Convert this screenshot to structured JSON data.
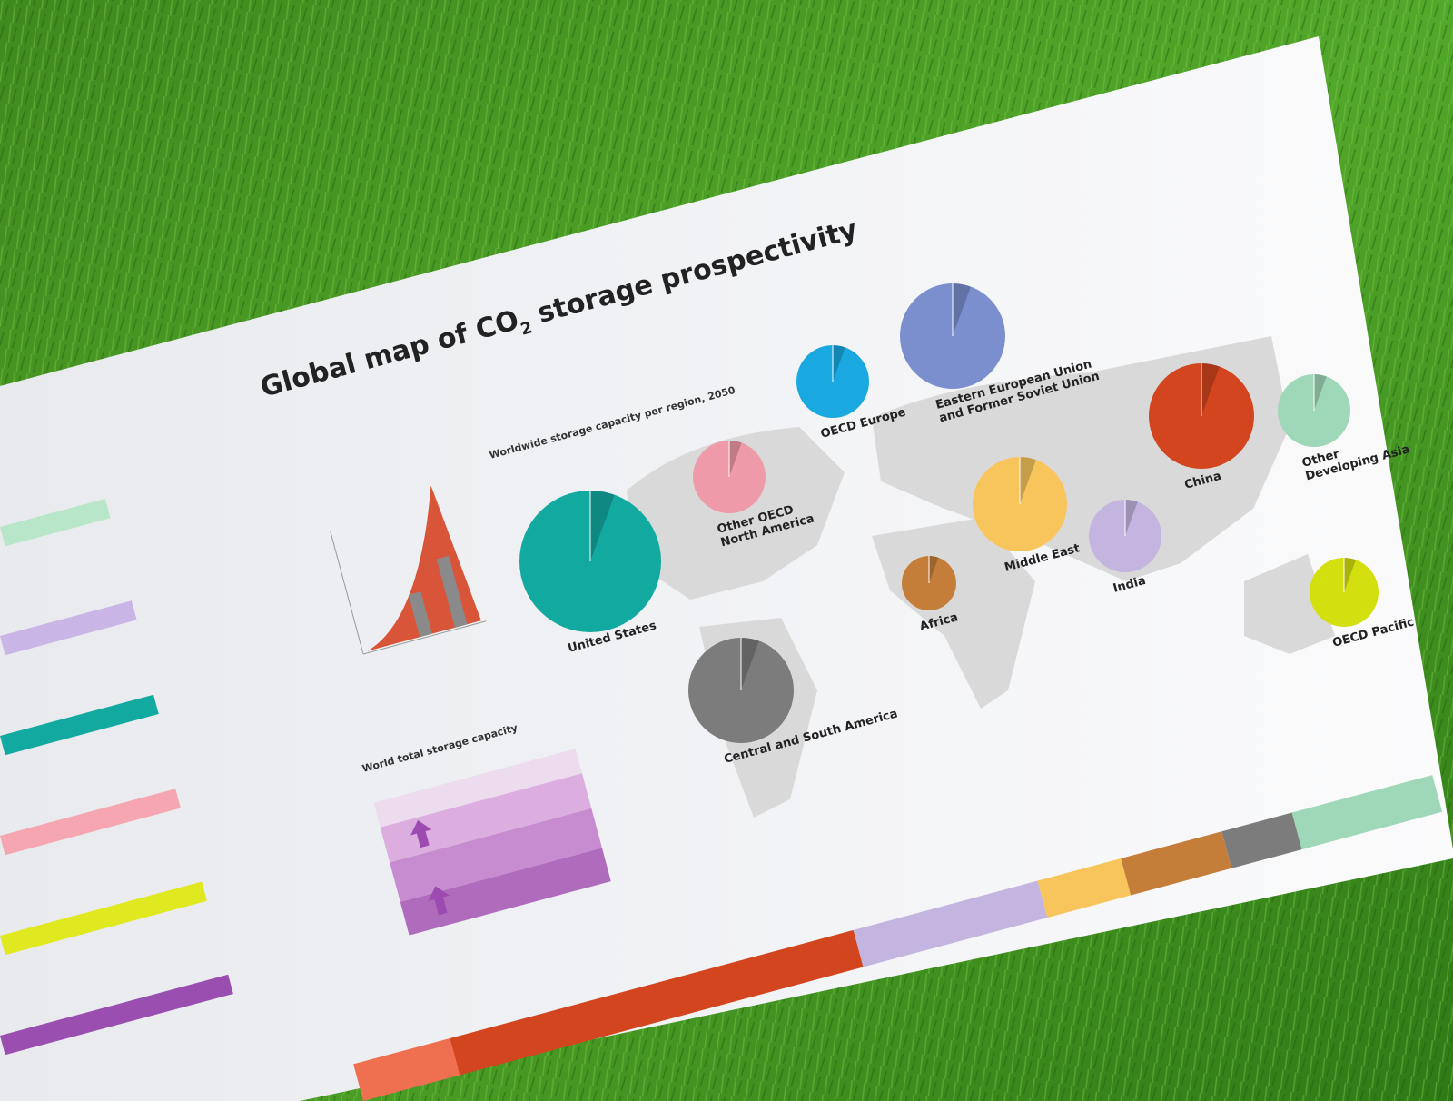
{
  "poster": {
    "title": {
      "text": "Global map of CO",
      "subscript": "2",
      "rest": " storage prospectivity"
    },
    "captions": [
      "Worldwide storage capacity per region, 2050",
      "World total storage capacity"
    ],
    "regions": [
      {
        "name": [
          "United States"
        ],
        "color": "#12aaa0"
      },
      {
        "name": [
          "Other OECD",
          "North America"
        ],
        "color": "#ef9aa8"
      },
      {
        "name": [
          "OECD Europe"
        ],
        "color": "#1aa8e0"
      },
      {
        "name": [
          "Eastern European Union",
          "and Former Soviet Union"
        ],
        "color": "#7b8fce"
      },
      {
        "name": [
          "Middle East"
        ],
        "color": "#f8c55c"
      },
      {
        "name": [
          "China"
        ],
        "color": "#d2451e"
      },
      {
        "name": [
          "Other",
          "Developing Asia"
        ],
        "color": "#9fd8b8"
      },
      {
        "name": [
          "India"
        ],
        "color": "#c3b5e0"
      },
      {
        "name": [
          "Africa"
        ],
        "color": "#c47e3a"
      },
      {
        "name": [
          "OECD Pacific"
        ],
        "color": "#d3df0e"
      },
      {
        "name": [
          "Central and South America"
        ],
        "color": "#7c7c7c"
      }
    ]
  }
}
